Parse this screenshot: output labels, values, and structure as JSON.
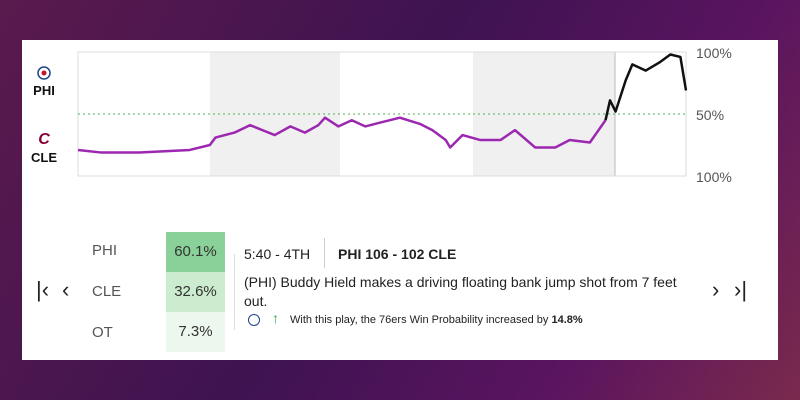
{
  "chart_data": {
    "type": "line",
    "team_labels": [
      "PHI",
      "CLE"
    ],
    "x": [
      0,
      2,
      5.5,
      10,
      11.8,
      12.3,
      14,
      15.4,
      16.5,
      17.6,
      19,
      20.3,
      21.5,
      22.1,
      23.3,
      24.5,
      25.7,
      27,
      28.8,
      30.6,
      31.7,
      32.9,
      33.3,
      34.4,
      36,
      37.8,
      39.1,
      40.9,
      42.7,
      44,
      45.8,
      47.2,
      47.6,
      48.1,
      49,
      49.6,
      50.8,
      52.1,
      53,
      53.9,
      54.4
    ],
    "values": [
      21,
      19,
      19,
      21,
      25,
      31,
      35,
      41,
      37,
      33,
      40,
      35,
      41,
      47,
      40,
      45,
      40,
      43,
      47,
      42,
      37,
      29,
      23,
      33,
      29,
      29,
      37,
      23,
      23,
      29,
      27,
      45,
      61,
      52,
      77,
      90,
      85,
      92,
      98,
      96,
      69
    ],
    "color_below": "#9c27b0",
    "color_above": "#111111",
    "xlim": [
      0,
      54.4
    ],
    "ylim": [
      0,
      100
    ],
    "yticks": [
      {
        "value": 0,
        "label": "100%"
      },
      {
        "value": 50,
        "label": "50%"
      },
      {
        "value": 100,
        "label": "100%"
      }
    ]
  },
  "win_probability": {
    "rows": [
      [
        "PHI",
        "60.1%"
      ],
      [
        "CLE",
        "32.6%"
      ],
      [
        "OT",
        "7.3%"
      ]
    ]
  },
  "play": {
    "clock": "5:40 - 4TH",
    "score": "PHI 106 - 102 CLE",
    "description": "(PHI) Buddy Hield makes a driving floating bank jump shot from 7 feet out.",
    "impact_text": "With this play, the 76ers Win Probability increased by",
    "impact_value": "14.8%"
  }
}
